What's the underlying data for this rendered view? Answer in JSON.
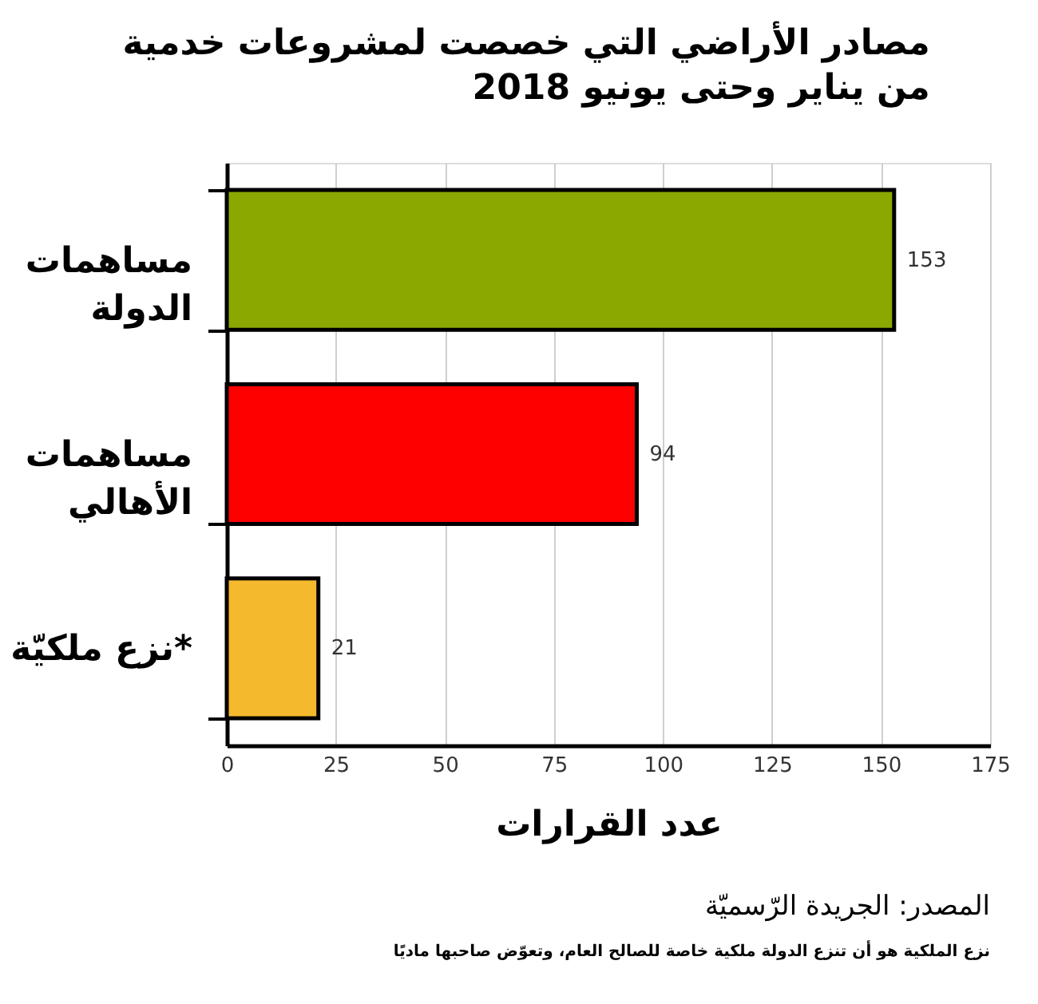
{
  "chart_data": {
    "type": "bar",
    "orientation": "horizontal",
    "title": "مصادر الأراضي التي خصصت لمشروعات خدمية من يناير وحتى يونيو 2018",
    "categories": [
      "مساهمات الدولة",
      "مساهمات الأهالي",
      "نزع ملكيّة*"
    ],
    "values": [
      153,
      94,
      21
    ],
    "colors": [
      "#8aa800",
      "#ff0000",
      "#f4b92c"
    ],
    "xlim": [
      0,
      175
    ],
    "xticks": [
      0,
      25,
      50,
      75,
      100,
      125,
      150,
      175
    ],
    "xlabel": "عدد القرارات",
    "grid": "x",
    "data_labels": true,
    "annotations": [
      "المصدر: الجريدة الرّسميّة",
      "نزع الملكية هو أن تنزع الدولة ملكية خاصة للصالح العام، وتعوّض صاحبها ماديًا"
    ]
  }
}
